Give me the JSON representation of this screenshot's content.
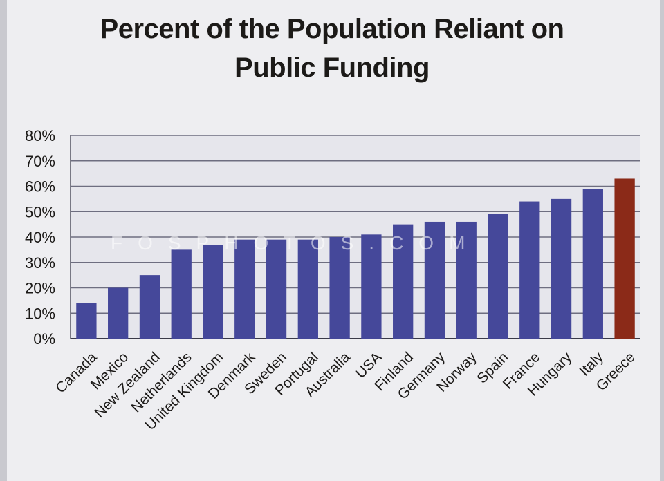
{
  "chart_data": {
    "type": "bar",
    "title": "Percent of the Population Reliant on Public Funding",
    "title_lines": [
      "Percent of the Population Reliant on",
      "Public Funding"
    ],
    "categories": [
      "Canada",
      "Mexico",
      "New Zealand",
      "Netherlands",
      "United Kingdom",
      "Denmark",
      "Sweden",
      "Portugal",
      "Australia",
      "USA",
      "Finland",
      "Germany",
      "Norway",
      "Spain",
      "France",
      "Hungary",
      "Italy",
      "Greece"
    ],
    "values": [
      14,
      20,
      25,
      35,
      37,
      39,
      39,
      39,
      40,
      41,
      45,
      46,
      46,
      49,
      54,
      55,
      59,
      63
    ],
    "highlight": "Greece",
    "yticks": [
      "0%",
      "10%",
      "20%",
      "30%",
      "40%",
      "50%",
      "60%",
      "70%",
      "80%"
    ],
    "ylim": [
      0,
      80
    ],
    "grid": true,
    "colors": {
      "bar": "#45489a",
      "highlight": "#8b2a18"
    }
  },
  "watermark": "FOSPHOTOS.COM"
}
